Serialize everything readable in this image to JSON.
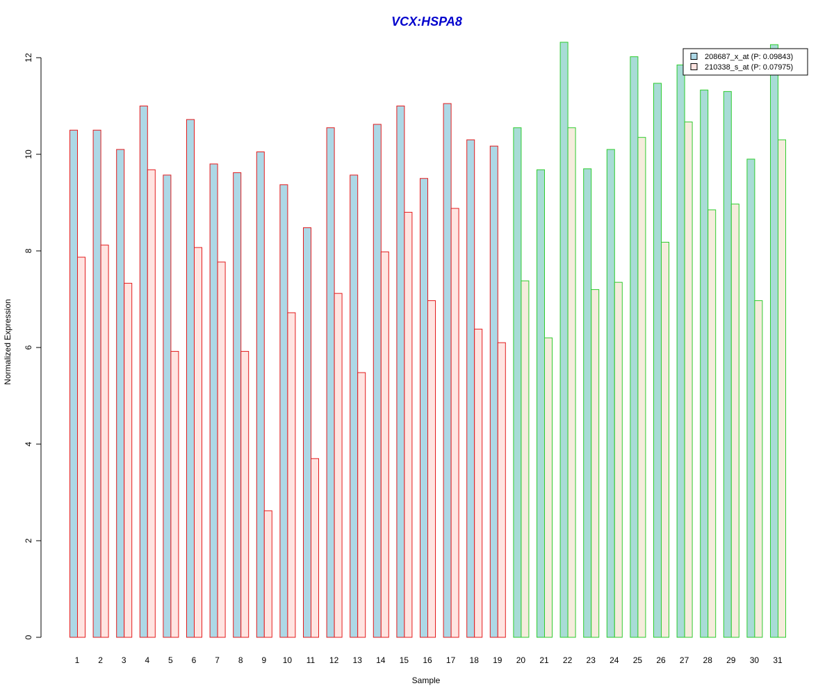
{
  "chart_data": {
    "type": "bar",
    "title": "VCX:HSPA8",
    "xlabel": "Sample",
    "ylabel": "Normalized Expression",
    "ylim": [
      0,
      12.4
    ],
    "yticks": [
      0,
      2,
      4,
      6,
      8,
      10,
      12
    ],
    "grid": false,
    "legend_position": "top-right",
    "categories": [
      "1",
      "2",
      "3",
      "4",
      "5",
      "6",
      "7",
      "8",
      "9",
      "10",
      "11",
      "12",
      "13",
      "14",
      "15",
      "16",
      "17",
      "18",
      "19",
      "20",
      "21",
      "22",
      "23",
      "24",
      "25",
      "26",
      "27",
      "28",
      "29",
      "30",
      "31"
    ],
    "groups": [
      {
        "samples": [
          1,
          19
        ],
        "border_color": "#e31a1c"
      },
      {
        "samples": [
          20,
          31
        ],
        "border_color": "#2ecc2e"
      }
    ],
    "series": [
      {
        "name": "208687_x_at (P: 0.09843)",
        "fill_colors": [
          "#add8e6",
          "#a8dcd6"
        ],
        "values": [
          10.5,
          10.5,
          10.1,
          11.0,
          9.57,
          10.72,
          9.8,
          9.62,
          10.05,
          9.37,
          8.48,
          10.55,
          9.57,
          10.62,
          11.0,
          9.5,
          11.05,
          10.3,
          10.17,
          10.55,
          9.68,
          12.32,
          9.7,
          10.1,
          12.02,
          11.47,
          11.85,
          11.33,
          11.3,
          9.9,
          12.27
        ]
      },
      {
        "name": "210338_s_at (P: 0.07975)",
        "fill_colors": [
          "#ffe4e1",
          "#f5ecdc"
        ],
        "values": [
          7.87,
          8.12,
          7.33,
          9.68,
          5.92,
          8.07,
          7.77,
          5.92,
          2.62,
          6.72,
          3.7,
          7.12,
          5.48,
          7.98,
          8.8,
          6.97,
          8.88,
          6.38,
          6.1,
          7.38,
          6.2,
          10.55,
          7.2,
          7.35,
          10.35,
          8.18,
          10.67,
          8.85,
          8.97,
          6.97,
          10.3
        ]
      }
    ],
    "title_color": "#0000cd"
  }
}
